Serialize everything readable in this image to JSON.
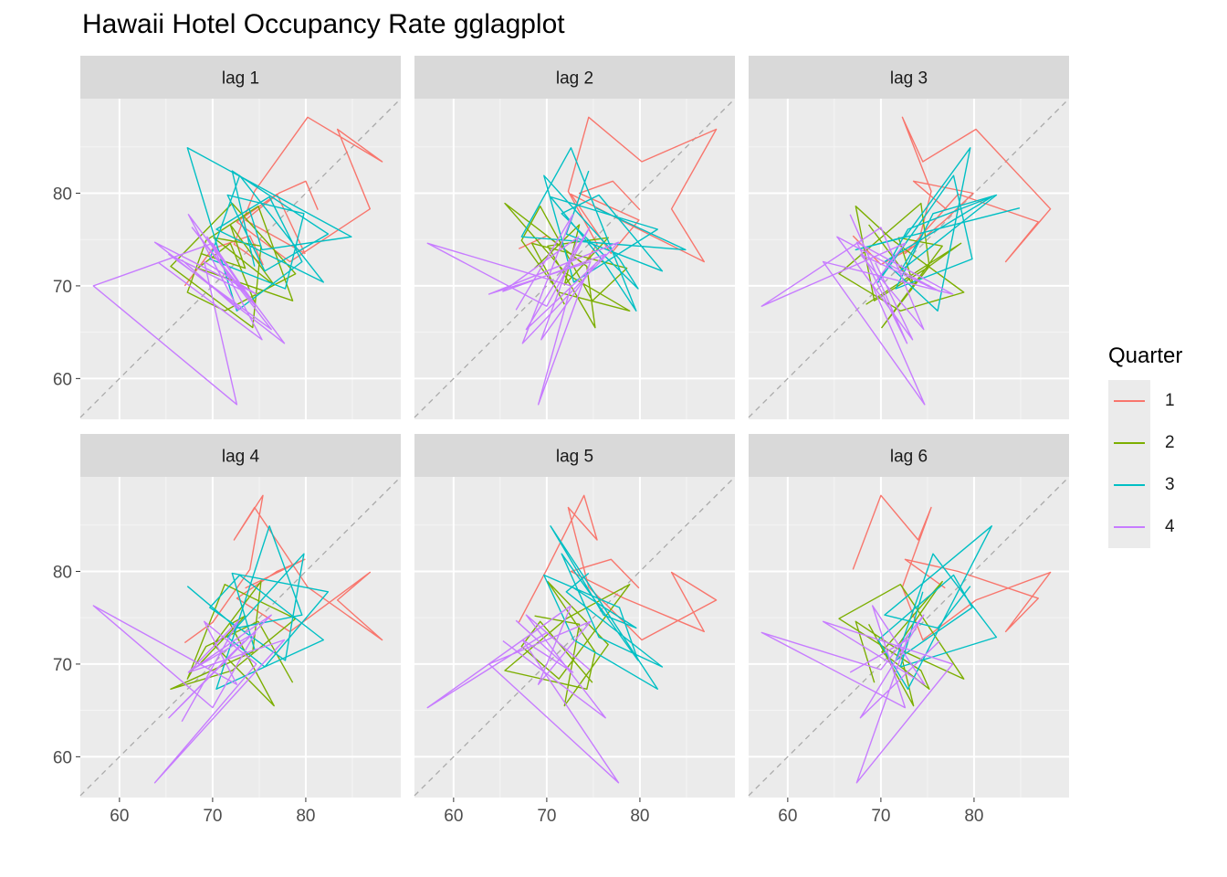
{
  "title": "Hawaii Hotel Occupancy Rate gglagplot",
  "legend": {
    "title": "Quarter",
    "items": [
      {
        "label": "1",
        "color": "#F8766D"
      },
      {
        "label": "2",
        "color": "#7CAE00"
      },
      {
        "label": "3",
        "color": "#00BFC4"
      },
      {
        "label": "4",
        "color": "#C77CFF"
      }
    ]
  },
  "chart_data": {
    "type": "line",
    "facets": [
      "lag 1",
      "lag 2",
      "lag 3",
      "lag 4",
      "lag 5",
      "lag 6"
    ],
    "xlim": [
      55.8,
      90.2
    ],
    "ylim": [
      55.6,
      90.2
    ],
    "x_ticks": [
      60,
      70,
      80
    ],
    "y_ticks": [
      60,
      70,
      80
    ],
    "x_tick_labels": [
      "60",
      "70",
      "80"
    ],
    "y_tick_labels": [
      "60",
      "70",
      "80"
    ],
    "reference_line": "y = x (dashed grey)",
    "quarter_colors": {
      "1": "#F8766D",
      "2": "#7CAE00",
      "3": "#00BFC4",
      "4": "#C77CFF"
    },
    "series": [
      {
        "quarter": "1",
        "y": [
          67,
          70,
          74,
          75.4,
          72.3,
          74.5,
          80.2,
          88.2,
          83.4,
          86.9,
          78.3,
          72.6,
          76.9,
          79.9,
          73.5,
          77.1,
          80,
          81.3,
          78.2
        ]
      },
      {
        "quarter": "2",
        "y": [
          68.7,
          73.5,
          71.9,
          76.6,
          70.1,
          75.2,
          74.3,
          65.5,
          72.1,
          78.9,
          71.3,
          67.3,
          69.3,
          74.9,
          78.6,
          68.4,
          71.9,
          74.6,
          68
        ]
      },
      {
        "quarter": "3",
        "y": [
          74.5,
          72.1,
          82.4,
          75.6,
          71.6,
          79.8,
          77.8,
          69.7,
          72.9,
          81.9,
          70.4,
          76.1,
          79.6,
          72.6,
          67.3,
          84.9,
          75.3,
          73.9,
          78.4
        ]
      },
      {
        "quarter": "4",
        "y": [
          66.7,
          72.8,
          67.4,
          77.7,
          63.8,
          74.7,
          69.1,
          72.6,
          57.2,
          70,
          74.6,
          67.8,
          76.3,
          65.3,
          73.4,
          69.4,
          75.3,
          64.2,
          72.5
        ]
      }
    ]
  }
}
